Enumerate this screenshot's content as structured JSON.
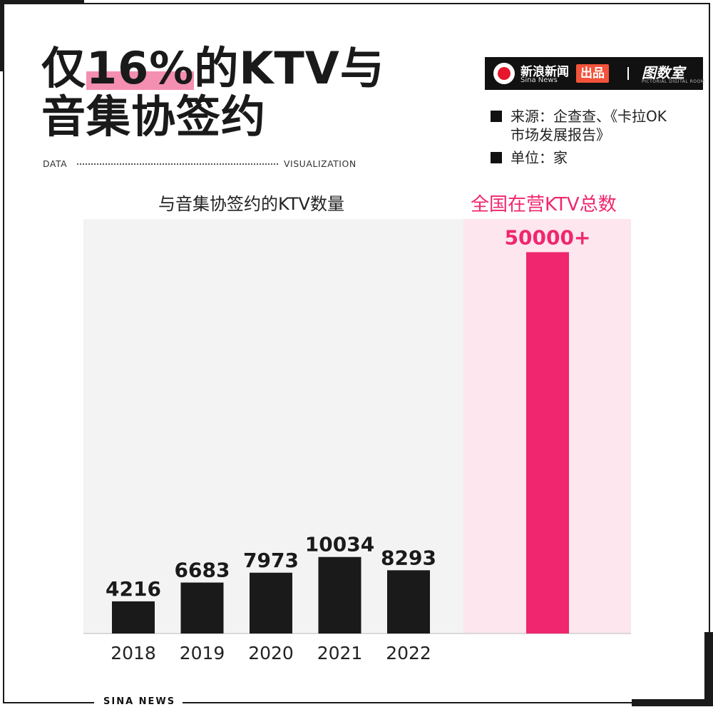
{
  "title": {
    "line1_pre": "仅",
    "line1_highlight": "16%",
    "line1_post": "的KTV与",
    "line2": "音集协签约"
  },
  "tagline": {
    "left": "DATA",
    "right": "VISUALIZATION"
  },
  "brand": {
    "name_cn": "新浪新闻",
    "name_en": "Sina News",
    "badge": "出品",
    "right": "图数室",
    "right_sub": "PICTORIAL DIGITAL ROOM"
  },
  "notes": {
    "source_line1": "来源：企查查、《卡拉OK",
    "source_line2": "市场发展报告》",
    "unit": "单位：家"
  },
  "colors": {
    "bar": "#1a1a1a",
    "highlight_bar": "#f0266e",
    "panel_left": "#f3f3f3",
    "panel_right": "#fde6ee",
    "accent": "#f0266e"
  },
  "footer": "SINA NEWS",
  "chart_data": {
    "type": "bar",
    "subtitle_left": "与音集协签约的KTV数量",
    "subtitle_right": "全国在营KTV总数",
    "categories": [
      "2018",
      "2019",
      "2020",
      "2021",
      "2022"
    ],
    "values": [
      4216,
      6683,
      7973,
      10034,
      8293
    ],
    "data_labels": [
      "4216",
      "6683",
      "7973",
      "10034",
      "8293"
    ],
    "total": {
      "value": 50000,
      "label": "50000+"
    },
    "ylim": [
      0,
      55000
    ]
  }
}
